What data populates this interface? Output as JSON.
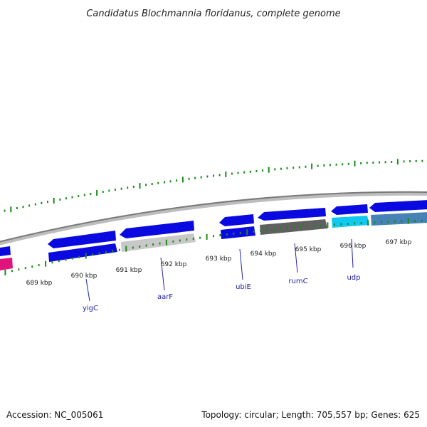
{
  "title": "Candidatus Blochmannia floridanus, complete genome",
  "accession_label": "Accession: NC_005061",
  "summary_label": "Topology: circular; Length: 705,557 bp; Genes: 625",
  "colors": {
    "backbone": "#8c8c8c",
    "tick": "#1a8a1a",
    "label_link": "#2222aa",
    "forward_gene": "#0a0ae0",
    "reverse_gene": "#0a0ae0",
    "magenta_gene": "#e0147a",
    "light_gray_gene": "#c8c8c8",
    "dark_gray_gene": "#606060",
    "cyan_gene": "#10c8f0",
    "steel_gene": "#4682b4"
  },
  "ticks": [
    {
      "label": "689 kbp"
    },
    {
      "label": "690 kbp"
    },
    {
      "label": "691 kbp"
    },
    {
      "label": "692 kbp"
    },
    {
      "label": "693 kbp"
    },
    {
      "label": "694 kbp"
    },
    {
      "label": "695 kbp"
    },
    {
      "label": "696 kbp"
    },
    {
      "label": "697 kbp"
    }
  ],
  "gene_labels": [
    {
      "name": "yigC"
    },
    {
      "name": "aarF"
    },
    {
      "name": "ubiE"
    },
    {
      "name": "rumC"
    },
    {
      "name": "udp"
    }
  ]
}
